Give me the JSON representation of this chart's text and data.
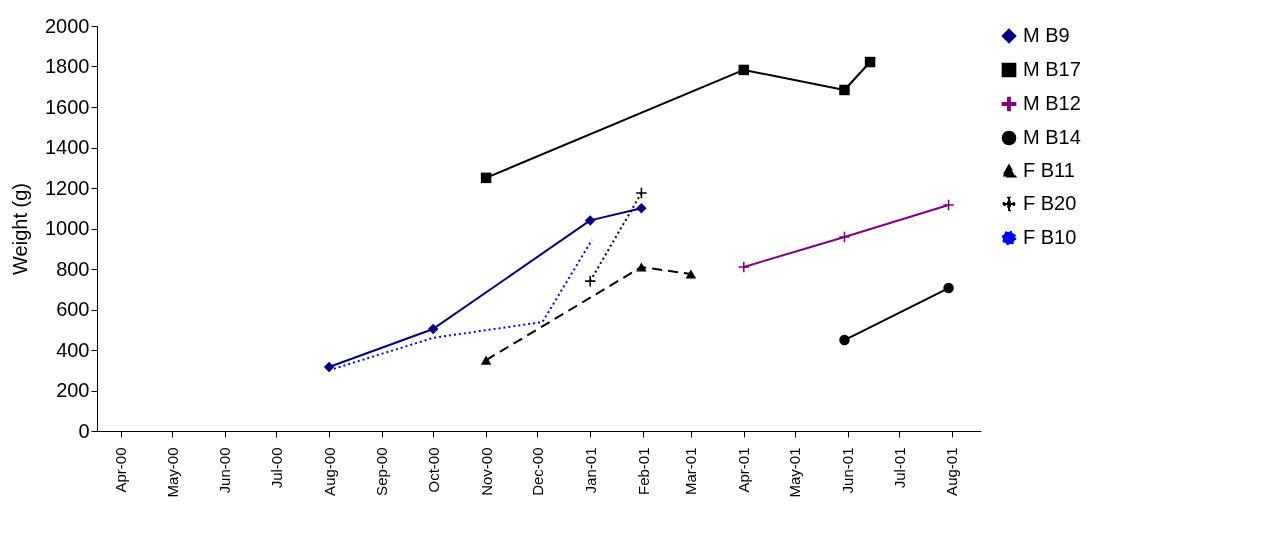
{
  "chart_data": {
    "type": "line",
    "ylabel": "Weight (g)",
    "legend": "right",
    "xlim": [
      "2000-04-01",
      "2001-09-01"
    ],
    "xticks": [
      {
        "value": "2000-04-15",
        "label": "Apr-00"
      },
      {
        "value": "2000-05-15",
        "label": "May-00"
      },
      {
        "value": "2000-06-15",
        "label": "Jun-00"
      },
      {
        "value": "2000-07-15",
        "label": "Jul-00"
      },
      {
        "value": "2000-08-15",
        "label": "Aug-00"
      },
      {
        "value": "2000-09-15",
        "label": "Sep-00"
      },
      {
        "value": "2000-10-15",
        "label": "Oct-00"
      },
      {
        "value": "2000-11-15",
        "label": "Nov-00"
      },
      {
        "value": "2000-12-15",
        "label": "Dec-00"
      },
      {
        "value": "2001-01-15",
        "label": "Jan-01"
      },
      {
        "value": "2001-02-15",
        "label": "Feb-01"
      },
      {
        "value": "2001-03-15",
        "label": "Mar-01"
      },
      {
        "value": "2001-04-15",
        "label": "Apr-01"
      },
      {
        "value": "2001-05-15",
        "label": "May-01"
      },
      {
        "value": "2001-06-15",
        "label": "Jun-01"
      },
      {
        "value": "2001-07-15",
        "label": "Jul-01"
      },
      {
        "value": "2001-08-15",
        "label": "Aug-01"
      }
    ],
    "ylim": [
      0,
      2000
    ],
    "yticks": [
      0,
      200,
      400,
      600,
      800,
      1000,
      1200,
      1400,
      1600,
      1800,
      2000
    ],
    "series": [
      {
        "name": "M B9",
        "color": "#000080",
        "marker": "diamond",
        "line_style": "solid",
        "x": [
          "2000-08-15",
          "2000-10-15",
          "2001-01-15",
          "2001-02-14"
        ],
        "values": [
          316,
          504,
          1040,
          1100
        ]
      },
      {
        "name": "M B17",
        "color": "#000000",
        "marker": "square",
        "line_style": "solid",
        "x": [
          "2000-11-15",
          "2001-04-15",
          "2001-06-13",
          "2001-06-28"
        ],
        "values": [
          1250,
          1783,
          1684,
          1822
        ]
      },
      {
        "name": "M B12",
        "color": "#800080",
        "marker": "cross",
        "line_style": "solid",
        "x": [
          "2001-04-15",
          "2001-06-13",
          "2001-08-13"
        ],
        "values": [
          810,
          958,
          1116
        ]
      },
      {
        "name": "M B14",
        "color": "#000000",
        "marker": "circle",
        "line_style": "solid",
        "x": [
          "2001-06-13",
          "2001-08-13"
        ],
        "values": [
          449,
          706
        ]
      },
      {
        "name": "F B11",
        "color": "#000000",
        "marker": "triangle",
        "line_style": "dashed",
        "x": [
          "2000-11-15",
          "2001-02-14",
          "2001-03-15"
        ],
        "values": [
          350,
          810,
          775
        ]
      },
      {
        "name": "F B20",
        "color": "#000000",
        "marker": "cross",
        "line_style": "dotted",
        "x": [
          "2001-01-15",
          "2001-02-14"
        ],
        "values": [
          740,
          1175
        ]
      },
      {
        "name": "F B10",
        "color": "#0000ff",
        "marker": "none",
        "line_style": "dotted",
        "x": [
          "2000-08-15",
          "2000-10-15",
          "2000-12-18",
          "2001-01-16"
        ],
        "values": [
          300,
          460,
          538,
          943
        ]
      }
    ]
  }
}
